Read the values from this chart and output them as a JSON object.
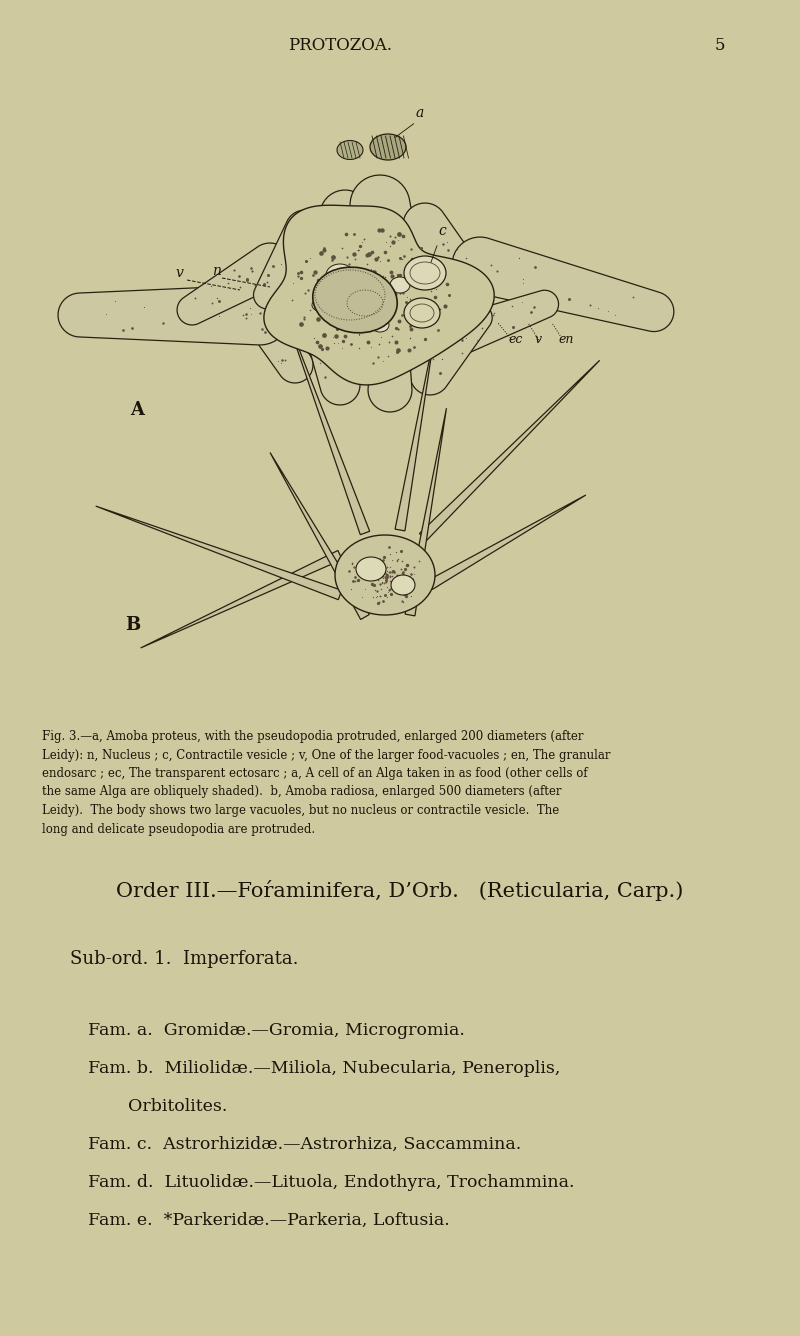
{
  "background_color": "#cfc9a0",
  "text_color": "#1a1508",
  "header_text": "PROTOZOA.",
  "page_number": "5",
  "fig_caption": "Fig. 3.—a, Amoba proteus, with the pseudopodia protruded, enlarged 200 diameters (after\nLeidy): n, Nucleus ; c, Contractile vesicle ; v, One of the larger food-vacuoles ; en, The granular\nendosarc ; ec, The transparent ectosarc ; a, A cell of an Alga taken in as food (other cells of\nthe same Alga are obliquely shaded).  b, Amoba radiosa, enlarged 500 diameters (after\nLeidy).  The body shows two large vacuoles, but no nucleus or contractile vesicle.  The\nlong and delicate pseudopodia are protruded.",
  "caption_fontsize": 8.5,
  "order_heading": "Order III.—Foŕaminifera, D’Orb.   (Reticularia, Carp.)",
  "order_fontsize": 15,
  "subord_text": "Sub-ord. 1.  Imperforata.",
  "subord_fontsize": 13,
  "fam_data": [
    [
      "Fam. a.  Gromidæ.—",
      "Gromia, Microgromia.",
      false
    ],
    [
      "Fam. b.  Miliolidæ.—",
      "Miliola, Nubecularia, Peneroplis,",
      false
    ],
    [
      "        ",
      "Orbitolites.",
      true
    ],
    [
      "Fam. c.  Astrorhizidæ.—",
      "Astrorhiza, Saccammina.",
      false
    ],
    [
      "Fam. d.  Lituolidæ.—",
      "Lituola, Endothyra, Trochammina.",
      false
    ],
    [
      "Fam. e.  *Parkeridæ.—",
      "Parkeria, Loftusia.",
      false
    ]
  ],
  "fam_fontsize": 12.5
}
